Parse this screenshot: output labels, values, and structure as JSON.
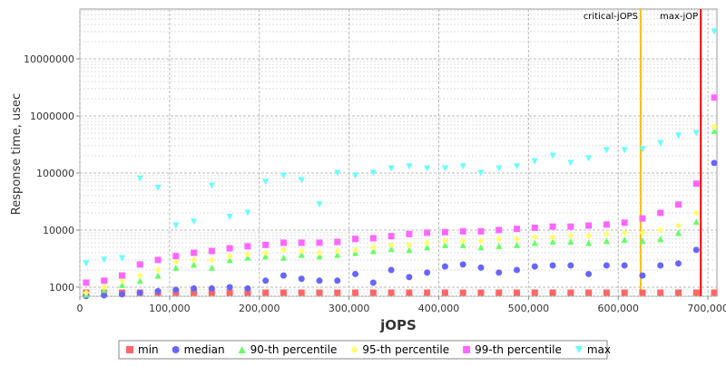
{
  "chart_data": {
    "type": "scatter",
    "y_label": "Response time, usec",
    "x_label": "jOPS",
    "log_y": true,
    "grid": true,
    "xlim": [
      0,
      710000
    ],
    "ylim": [
      693,
      74600000
    ],
    "xticks": [
      0,
      {
        "value": 100000,
        "label": "100,000"
      },
      {
        "value": 200000,
        "label": "200,000"
      },
      {
        "value": 300000,
        "label": "300,000"
      },
      {
        "value": 400000,
        "label": "400,000"
      },
      {
        "value": 500000,
        "label": "500,000"
      },
      {
        "value": 600000,
        "label": "600,000"
      },
      {
        "value": 700000,
        "label": "700,000"
      }
    ],
    "yticks": [
      1000,
      10000,
      100000,
      1000000,
      10000000
    ],
    "markers": [
      {
        "label": "critical-jOPS",
        "x": 625000,
        "color": "#ffc000"
      },
      {
        "label": "max-jOP",
        "x": 692000,
        "color": "#ff0000"
      }
    ],
    "x": [
      7000,
      27000,
      47000,
      67000,
      87000,
      107000,
      127000,
      147000,
      167000,
      187000,
      207000,
      227000,
      247000,
      267000,
      287000,
      307000,
      327000,
      347000,
      367000,
      387000,
      407000,
      427000,
      447000,
      467000,
      487000,
      507000,
      527000,
      547000,
      567000,
      587000,
      607000,
      627000,
      647000,
      667000,
      687000,
      707000
    ],
    "series": [
      {
        "name": "min",
        "color": "#ff6666",
        "marker": "square",
        "values": [
          800,
          800,
          800,
          800,
          800,
          800,
          800,
          800,
          800,
          800,
          800,
          800,
          800,
          800,
          800,
          800,
          800,
          800,
          800,
          800,
          800,
          800,
          800,
          800,
          800,
          800,
          800,
          800,
          800,
          800,
          800,
          800,
          800,
          800,
          800,
          800
        ]
      },
      {
        "name": "median",
        "color": "#6666ff",
        "marker": "circle",
        "values": [
          700,
          720,
          750,
          800,
          850,
          900,
          950,
          950,
          1000,
          950,
          1300,
          1600,
          1400,
          1300,
          1300,
          1700,
          1200,
          2000,
          1500,
          1800,
          2300,
          2500,
          2200,
          1800,
          2000,
          2300,
          2400,
          2400,
          1700,
          2400,
          2400,
          1600,
          2400,
          2600,
          4500,
          150000
        ]
      },
      {
        "name": "90-th percentile",
        "color": "#66ff66",
        "marker": "triangle",
        "values": [
          750,
          900,
          1100,
          1300,
          1600,
          2200,
          2500,
          2200,
          3000,
          3300,
          3500,
          3300,
          3700,
          3500,
          3700,
          4000,
          4300,
          4700,
          4500,
          5000,
          5500,
          5500,
          5000,
          5300,
          5500,
          6000,
          6300,
          6300,
          6000,
          6500,
          6800,
          6500,
          7000,
          9000,
          14000,
          550000
        ]
      },
      {
        "name": "95-th percentile",
        "color": "#ffff66",
        "marker": "diamond",
        "values": [
          800,
          1000,
          1300,
          1600,
          2000,
          2800,
          3000,
          3000,
          3500,
          3800,
          4000,
          4500,
          4300,
          4000,
          4300,
          4500,
          5000,
          5500,
          5500,
          6000,
          6500,
          6500,
          6500,
          7000,
          7000,
          7500,
          7500,
          8000,
          8000,
          8500,
          9000,
          9000,
          10000,
          12000,
          20000,
          650000
        ]
      },
      {
        "name": "99-th percentile",
        "color": "#ff66ff",
        "marker": "square",
        "values": [
          1200,
          1300,
          1600,
          2500,
          3000,
          3500,
          4000,
          4300,
          4800,
          5200,
          5500,
          6000,
          6000,
          6000,
          6200,
          7000,
          7200,
          7800,
          8500,
          9000,
          9200,
          9500,
          9500,
          10000,
          10500,
          11000,
          11500,
          11500,
          12000,
          12500,
          13500,
          16000,
          20000,
          28000,
          65000,
          2100000
        ]
      },
      {
        "name": "max",
        "color": "#66ffff",
        "marker": "down-triangle",
        "values": [
          2600,
          3000,
          3200,
          80000,
          55000,
          12000,
          14000,
          60000,
          17000,
          20000,
          70000,
          90000,
          75000,
          28000,
          100000,
          90000,
          100000,
          120000,
          130000,
          120000,
          120000,
          130000,
          100000,
          120000,
          130000,
          160000,
          200000,
          150000,
          180000,
          250000,
          250000,
          260000,
          330000,
          450000,
          500000,
          30000000
        ]
      }
    ]
  }
}
